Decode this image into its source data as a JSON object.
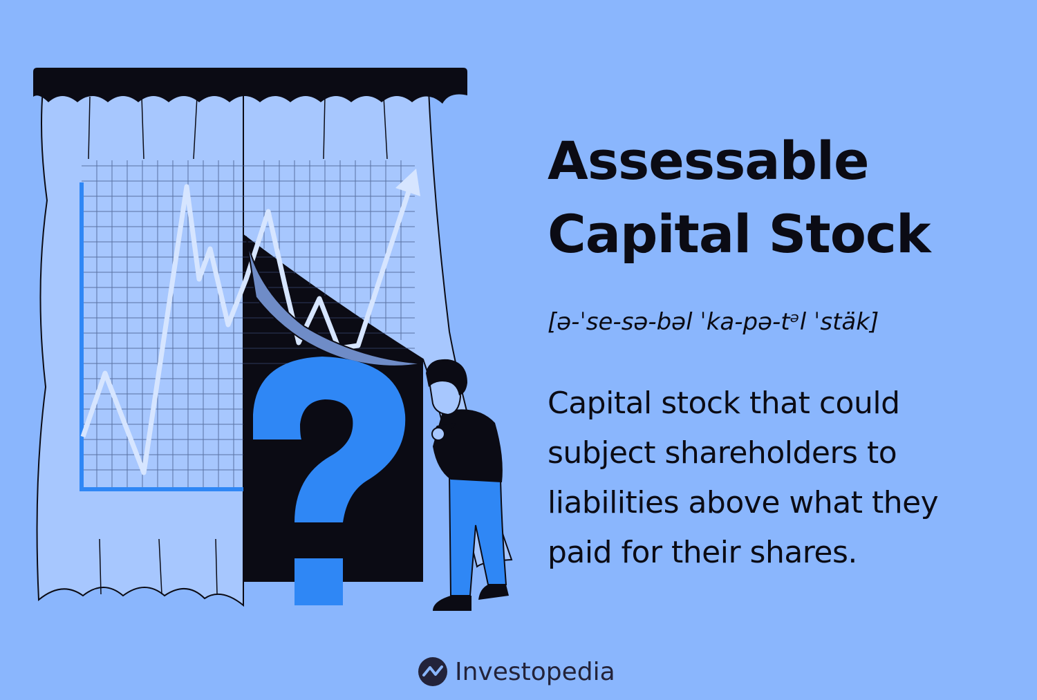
{
  "heading": {
    "line1": "Assessable",
    "line2": "Capital Stock"
  },
  "pronunciation": "[ə-ˈse-sə-bəl ˈka-pə-tᵊl ˈstäk]",
  "definition": {
    "line1": "Capital stock that could",
    "line2": "subject shareholders to",
    "line3": "liabilities above what they",
    "line4": "paid for their shares."
  },
  "brand": {
    "name": "Investopedia"
  },
  "colors": {
    "background": "#8ab6fd",
    "curtain": "#a7c7fe",
    "accent": "#2f87f5",
    "dark": "#0b0b14"
  },
  "illustration": {
    "icons": [
      "curtain",
      "line-chart",
      "question-mark",
      "person-peeking"
    ]
  }
}
